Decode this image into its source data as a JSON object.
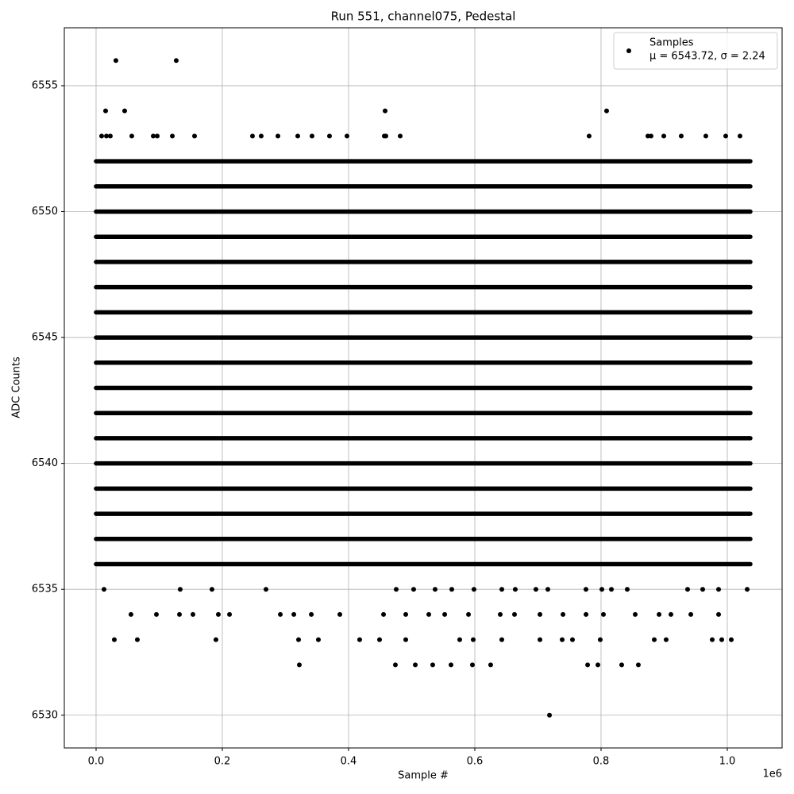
{
  "chart_data": {
    "type": "scatter",
    "title": "Run 551, channel075, Pedestal",
    "xlabel": "Sample #",
    "ylabel": "ADC Counts",
    "x_offset_label": "1e6",
    "xlim": [
      -50300,
      1086800
    ],
    "ylim": [
      6528.7,
      6557.3
    ],
    "xticks": [
      {
        "value": 0,
        "label": "0.0"
      },
      {
        "value": 200000,
        "label": "0.2"
      },
      {
        "value": 400000,
        "label": "0.4"
      },
      {
        "value": 600000,
        "label": "0.6"
      },
      {
        "value": 800000,
        "label": "0.8"
      },
      {
        "value": 1000000,
        "label": "1.0"
      }
    ],
    "yticks": [
      6530,
      6535,
      6540,
      6545,
      6550,
      6555
    ],
    "grid": true,
    "legend_position": "upper right",
    "legend_note": "μ = 6543.72, σ = 2.24",
    "bands": {
      "levels": [
        6536,
        6537,
        6538,
        6539,
        6540,
        6541,
        6542,
        6543,
        6544,
        6545,
        6546,
        6547,
        6548,
        6549,
        6550,
        6551,
        6552
      ],
      "x_range": [
        0,
        1036500
      ]
    },
    "series": [
      {
        "name": "Samples",
        "color": "#000000",
        "x": [
          31400,
          127000,
          15100,
          45300,
          457900,
          808800,
          8800,
          16400,
          22600,
          56600,
          90600,
          96900,
          120800,
          156000,
          247800,
          261600,
          288100,
          319500,
          342100,
          369800,
          397500,
          456600,
          459100,
          481800,
          781100,
          874200,
          879200,
          899400,
          927000,
          966000,
          997500,
          1020100,
          12600,
          133300,
          183600,
          269200,
          475500,
          503100,
          537100,
          563500,
          598700,
          642800,
          664100,
          696800,
          715700,
          776100,
          801300,
          816400,
          841500,
          937100,
          961000,
          986200,
          1031500,
          55300,
          95600,
          132100,
          153500,
          193700,
          211400,
          291900,
          313300,
          341000,
          386200,
          455400,
          490600,
          527100,
          552300,
          590000,
          640300,
          662900,
          703200,
          739700,
          776200,
          803800,
          854100,
          891900,
          910700,
          942200,
          986200,
          28900,
          65400,
          189900,
          320800,
          352200,
          417600,
          449100,
          490600,
          576100,
          597500,
          642800,
          703200,
          738400,
          754700,
          798700,
          884300,
          903100,
          976100,
          991200,
          1006300,
          322000,
          474200,
          505700,
          533300,
          562300,
          596200,
          625100,
          778700,
          795000,
          832700,
          859100,
          718300
        ],
        "values": [
          6556,
          6556,
          6554,
          6554,
          6554,
          6554,
          6553,
          6553,
          6553,
          6553,
          6553,
          6553,
          6553,
          6553,
          6553,
          6553,
          6553,
          6553,
          6553,
          6553,
          6553,
          6553,
          6553,
          6553,
          6553,
          6553,
          6553,
          6553,
          6553,
          6553,
          6553,
          6553,
          6535,
          6535,
          6535,
          6535,
          6535,
          6535,
          6535,
          6535,
          6535,
          6535,
          6535,
          6535,
          6535,
          6535,
          6535,
          6535,
          6535,
          6535,
          6535,
          6535,
          6535,
          6534,
          6534,
          6534,
          6534,
          6534,
          6534,
          6534,
          6534,
          6534,
          6534,
          6534,
          6534,
          6534,
          6534,
          6534,
          6534,
          6534,
          6534,
          6534,
          6534,
          6534,
          6534,
          6534,
          6534,
          6534,
          6534,
          6533,
          6533,
          6533,
          6533,
          6533,
          6533,
          6533,
          6533,
          6533,
          6533,
          6533,
          6533,
          6533,
          6533,
          6533,
          6533,
          6533,
          6533,
          6533,
          6533,
          6532,
          6532,
          6532,
          6532,
          6532,
          6532,
          6532,
          6532,
          6532,
          6532,
          6532,
          6530
        ]
      }
    ]
  }
}
